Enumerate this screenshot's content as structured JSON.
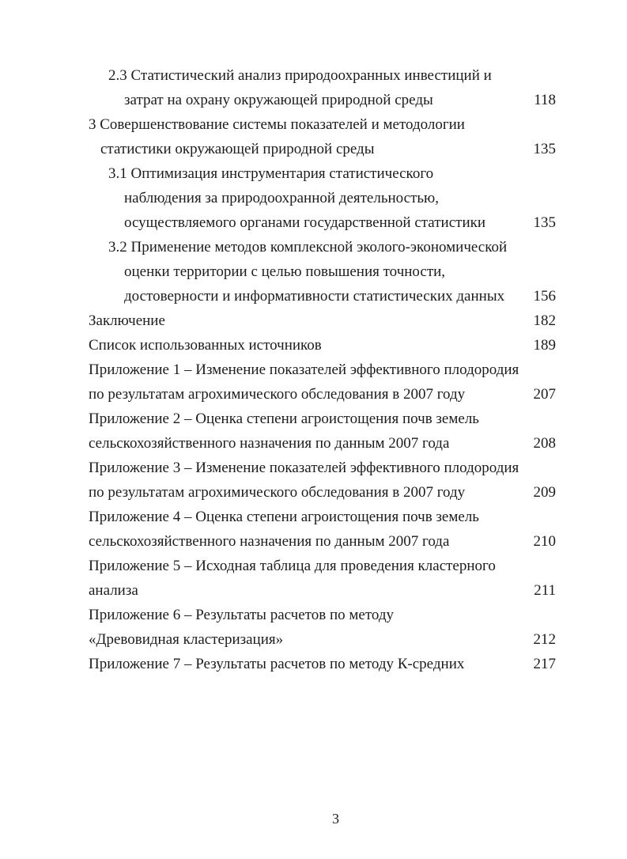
{
  "page": {
    "footer_page_number": "3"
  },
  "colors": {
    "background": "#ffffff",
    "text": "#1c1c1c"
  },
  "toc": {
    "lines": [
      {
        "text": "2.3 Статистический анализ природоохранных инвестиций и",
        "indent": 2,
        "page": ""
      },
      {
        "text": "затрат на охрану окружающей природной среды",
        "indent": 3,
        "page": "118"
      },
      {
        "text": "3 Совершенствование системы показателей и методологии",
        "indent": 0,
        "page": ""
      },
      {
        "text": "статистики окружающей природной среды",
        "indent": 1,
        "page": "135"
      },
      {
        "text": "3.1 Оптимизация инструментария статистического",
        "indent": 2,
        "page": ""
      },
      {
        "text": "наблюдения за природоохранной деятельностью,",
        "indent": 3,
        "page": ""
      },
      {
        "text": "осуществляемого органами государственной статистики",
        "indent": 3,
        "page": "135"
      },
      {
        "text": "3.2 Применение методов комплексной эколого-экономической",
        "indent": 2,
        "page": ""
      },
      {
        "text": "оценки территории с целью повышения точности,",
        "indent": 3,
        "page": ""
      },
      {
        "text": "достоверности и информативности статистических данных",
        "indent": 3,
        "page": "156"
      },
      {
        "text": "Заключение",
        "indent": 0,
        "page": "182"
      },
      {
        "text": "Список использованных источников",
        "indent": 0,
        "page": "189"
      },
      {
        "text": "Приложение 1 – Изменение показателей эффективного плодородия",
        "indent": 0,
        "page": ""
      },
      {
        "text": "по результатам агрохимического обследования в 2007 году",
        "indent": 0,
        "page": "207"
      },
      {
        "text": "Приложение 2 – Оценка степени агроистощения почв земель",
        "indent": 0,
        "page": ""
      },
      {
        "text": "сельскохозяйственного назначения по данным 2007 года",
        "indent": 0,
        "page": "208"
      },
      {
        "text": "Приложение 3 – Изменение показателей эффективного плодородия",
        "indent": 0,
        "page": ""
      },
      {
        "text": "по результатам агрохимического обследования в 2007 году",
        "indent": 0,
        "page": "209"
      },
      {
        "text": "Приложение 4 – Оценка степени агроистощения почв земель",
        "indent": 0,
        "page": ""
      },
      {
        "text": "сельскохозяйственного назначения по данным 2007 года",
        "indent": 0,
        "page": "210"
      },
      {
        "text": "Приложение 5 – Исходная таблица для проведения кластерного",
        "indent": 0,
        "page": ""
      },
      {
        "text": "анализа",
        "indent": 0,
        "page": "211"
      },
      {
        "text": "Приложение 6 – Результаты расчетов по методу",
        "indent": 0,
        "page": ""
      },
      {
        "text": "«Древовидная кластеризация»",
        "indent": 0,
        "page": "212"
      },
      {
        "text": "Приложение 7 – Результаты расчетов по методу К-средних",
        "indent": 0,
        "page": "217"
      }
    ]
  }
}
